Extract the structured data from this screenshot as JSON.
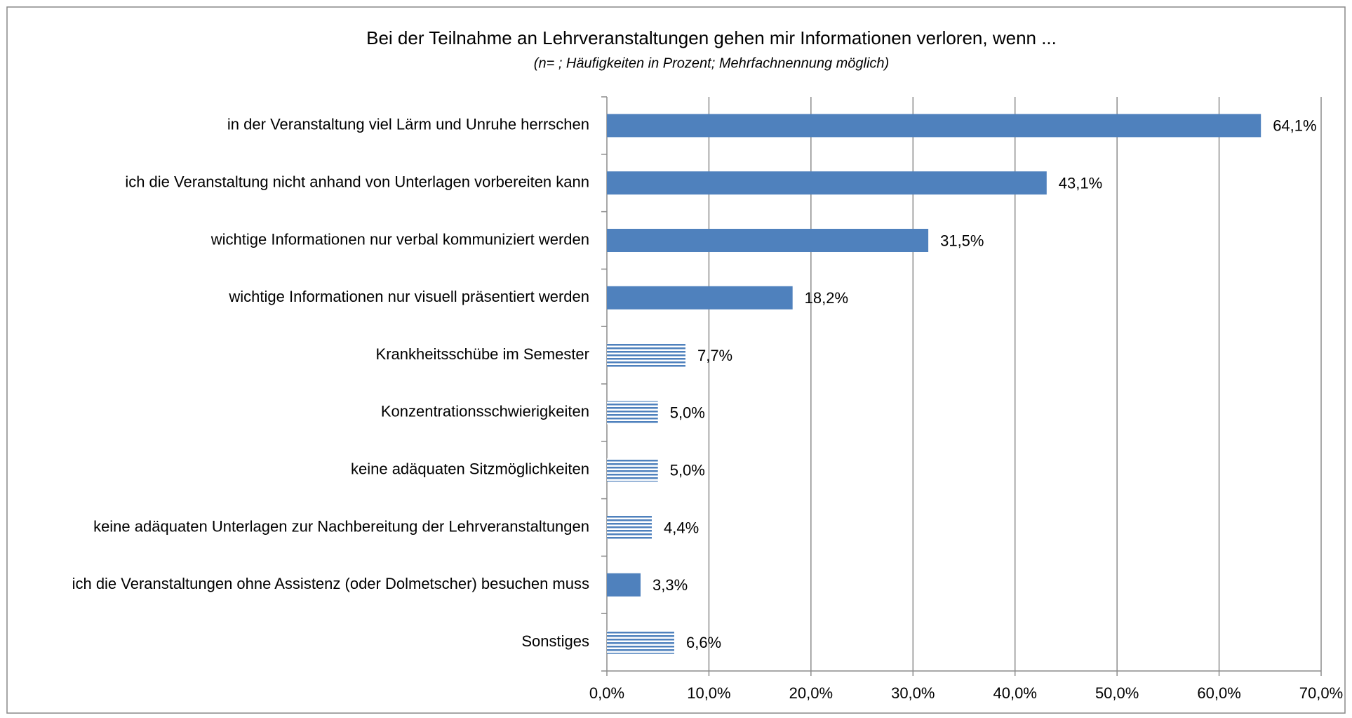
{
  "chart_data": {
    "type": "barh",
    "title": "Bei der Teilnahme an Lehrveranstaltungen gehen mir Informationen verloren, wenn ...",
    "subtitle": "(n= ; Häufigkeiten in Prozent; Mehrfachnennung möglich)",
    "categories": [
      "in der Veranstaltung viel Lärm und Unruhe herrschen",
      "ich die Veranstaltung nicht anhand von Unterlagen vorbereiten kann",
      "wichtige Informationen nur verbal kommuniziert werden",
      "wichtige Informationen nur visuell präsentiert werden",
      "Krankheitsschübe im Semester",
      "Konzentrationsschwierigkeiten",
      "keine adäquaten Sitzmöglichkeiten",
      "keine adäquaten Unterlagen zur Nachbereitung der Lehrveranstaltungen",
      "ich die Veranstaltungen ohne Assistenz (oder Dolmetscher) besuchen muss",
      "Sonstiges"
    ],
    "values": [
      64.1,
      43.1,
      31.5,
      18.2,
      7.7,
      5.0,
      5.0,
      4.4,
      3.3,
      6.6
    ],
    "value_labels": [
      "64,1%",
      "43,1%",
      "31,5%",
      "18,2%",
      "7,7%",
      "5,0%",
      "5,0%",
      "4,4%",
      "3,3%",
      "6,6%"
    ],
    "bar_fill": [
      "solid",
      "solid",
      "solid",
      "solid",
      "striped",
      "striped",
      "striped",
      "striped",
      "solid",
      "striped"
    ],
    "color": "#4f81bd",
    "xlim": [
      0,
      70
    ],
    "xticks": [
      {
        "value": 0,
        "label": "0,0%"
      },
      {
        "value": 10,
        "label": "10,0%"
      },
      {
        "value": 20,
        "label": "20,0%"
      },
      {
        "value": 30,
        "label": "30,0%"
      },
      {
        "value": 40,
        "label": "40,0%"
      },
      {
        "value": 50,
        "label": "50,0%"
      },
      {
        "value": 60,
        "label": "60,0%"
      },
      {
        "value": 70,
        "label": "70,0%"
      }
    ],
    "grid": true
  }
}
